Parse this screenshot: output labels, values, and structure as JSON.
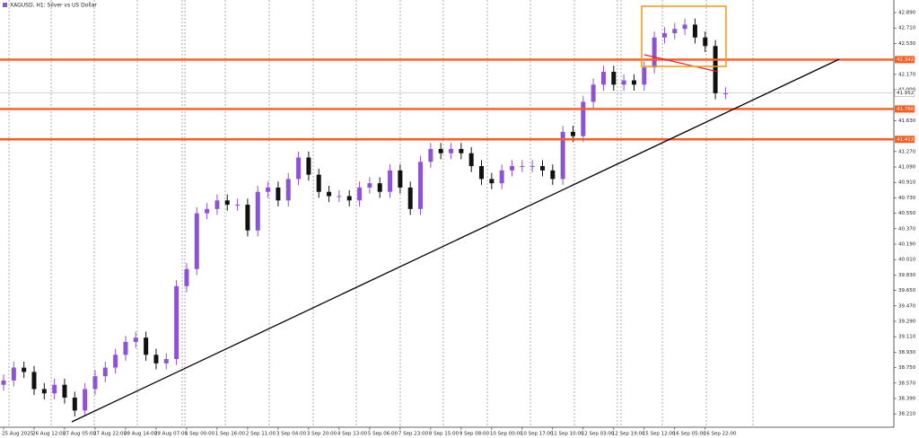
{
  "chart_data": {
    "type": "candlestick",
    "title": "XAGUSD, H1: Silver vs US Dollar",
    "categories": [
      "25 Aug 2025",
      null,
      null,
      "26 Aug 12:00",
      null,
      null,
      "27 Aug 05:00",
      null,
      null,
      "27 Aug 22:00",
      null,
      null,
      "28 Aug 14:00",
      null,
      null,
      "29 Aug 07:00",
      null,
      null,
      "1 Sep 00:00",
      null,
      null,
      "1 Sep 16:00",
      null,
      null,
      "2 Sep 11:00",
      null,
      null,
      "3 Sep 04:00",
      null,
      null,
      "3 Sep 20:00",
      null,
      null,
      "4 Sep 13:00",
      null,
      null,
      "5 Sep 06:00",
      null,
      null,
      "7 Sep 23:00",
      null,
      null,
      "8 Sep 15:00",
      null,
      null,
      "9 Sep 08:00",
      null,
      null,
      "10 Sep 00:00",
      null,
      null,
      "10 Sep 17:00",
      null,
      null,
      "11 Sep 10:00",
      null,
      null,
      "12 Sep 03:00",
      null,
      null,
      "12 Sep 19:00",
      null,
      null,
      "15 Sep 12:00",
      null,
      null,
      "16 Sep 05:00",
      null,
      null,
      "16 Sep 22:00",
      null,
      null
    ],
    "open": [
      38.55,
      38.6,
      38.75,
      38.7,
      38.5,
      38.45,
      38.55,
      38.4,
      38.25,
      38.5,
      38.65,
      38.75,
      38.9,
      39.05,
      39.1,
      38.9,
      38.8,
      38.85,
      39.7,
      39.9,
      40.55,
      40.6,
      40.7,
      40.65,
      40.65,
      40.35,
      40.8,
      40.85,
      40.7,
      40.95,
      41.2,
      41.0,
      40.8,
      40.75,
      40.75,
      40.7,
      40.85,
      40.9,
      40.8,
      41.05,
      40.85,
      40.6,
      41.15,
      41.3,
      41.25,
      41.3,
      41.25,
      41.1,
      40.95,
      40.9,
      41.05,
      41.1,
      41.1,
      41.1,
      41.05,
      40.95,
      41.5,
      41.45,
      41.85,
      42.05,
      42.2,
      42.05,
      42.1,
      42.05,
      42.25,
      42.6,
      42.65,
      42.7,
      42.75,
      42.6,
      42.5,
      41.95
    ],
    "high": [
      38.67,
      38.82,
      38.82,
      38.77,
      38.57,
      38.62,
      38.62,
      38.47,
      38.57,
      38.72,
      38.82,
      38.97,
      39.12,
      39.17,
      39.17,
      38.97,
      38.92,
      39.77,
      39.97,
      40.62,
      40.67,
      40.77,
      40.77,
      40.72,
      40.72,
      40.87,
      40.92,
      40.92,
      41.02,
      41.27,
      41.27,
      41.07,
      40.87,
      40.82,
      40.82,
      40.92,
      40.97,
      40.97,
      41.12,
      41.12,
      40.92,
      41.22,
      41.37,
      41.37,
      41.37,
      41.37,
      41.32,
      41.17,
      41.02,
      41.12,
      41.17,
      41.17,
      41.17,
      41.17,
      41.12,
      41.57,
      41.57,
      41.92,
      42.12,
      42.27,
      42.27,
      42.17,
      42.17,
      42.32,
      42.67,
      42.72,
      42.77,
      42.82,
      42.82,
      42.67,
      42.57,
      42.02
    ],
    "low": [
      38.48,
      38.53,
      38.63,
      38.43,
      38.38,
      38.38,
      38.33,
      38.18,
      38.18,
      38.43,
      38.58,
      38.68,
      38.83,
      38.98,
      38.83,
      38.73,
      38.73,
      38.78,
      39.63,
      39.83,
      40.48,
      40.53,
      40.58,
      40.58,
      40.28,
      40.28,
      40.73,
      40.63,
      40.63,
      40.88,
      40.93,
      40.73,
      40.68,
      40.68,
      40.63,
      40.63,
      40.78,
      40.73,
      40.73,
      40.78,
      40.53,
      40.53,
      41.08,
      41.18,
      41.18,
      41.18,
      41.03,
      40.88,
      40.83,
      40.83,
      40.98,
      41.03,
      41.03,
      40.98,
      40.88,
      40.88,
      41.38,
      41.38,
      41.78,
      41.98,
      41.98,
      41.98,
      41.98,
      41.98,
      42.18,
      42.53,
      42.58,
      42.63,
      42.53,
      42.43,
      41.88,
      41.88
    ],
    "close": [
      38.6,
      38.75,
      38.7,
      38.5,
      38.45,
      38.55,
      38.4,
      38.25,
      38.5,
      38.65,
      38.75,
      38.9,
      39.05,
      39.1,
      38.9,
      38.8,
      38.85,
      39.7,
      39.9,
      40.55,
      40.6,
      40.7,
      40.65,
      40.65,
      40.35,
      40.8,
      40.85,
      40.7,
      40.95,
      41.2,
      41.0,
      40.8,
      40.75,
      40.75,
      40.7,
      40.85,
      40.9,
      40.8,
      41.05,
      40.85,
      40.6,
      41.15,
      41.3,
      41.25,
      41.3,
      41.25,
      41.1,
      40.95,
      40.9,
      41.05,
      41.1,
      41.1,
      41.1,
      41.05,
      40.95,
      41.5,
      41.45,
      41.85,
      42.05,
      42.2,
      42.05,
      42.1,
      42.05,
      42.25,
      42.6,
      42.65,
      42.7,
      42.75,
      42.6,
      42.5,
      41.95,
      41.95
    ],
    "up_color": "#8e52d6",
    "down_color": "#111111",
    "ylim": [
      38.055,
      43.037
    ],
    "yticks": [
      {
        "value": 42.89,
        "label": "42.890"
      },
      {
        "value": 42.71,
        "label": "42.710"
      },
      {
        "value": 42.53,
        "label": "42.530"
      },
      {
        "value": 42.17,
        "label": "42.170"
      },
      {
        "value": 41.99,
        "label": "41.990"
      },
      {
        "value": 41.63,
        "label": "41.630"
      },
      {
        "value": 41.27,
        "label": "41.270"
      },
      {
        "value": 41.09,
        "label": "41.090"
      },
      {
        "value": 40.91,
        "label": "40.910"
      },
      {
        "value": 40.73,
        "label": "40.730"
      },
      {
        "value": 40.55,
        "label": "40.550"
      },
      {
        "value": 40.37,
        "label": "40.370"
      },
      {
        "value": 40.19,
        "label": "40.190"
      },
      {
        "value": 40.01,
        "label": "40.010"
      },
      {
        "value": 39.83,
        "label": "39.830"
      },
      {
        "value": 39.65,
        "label": "39.650"
      },
      {
        "value": 39.47,
        "label": "39.470"
      },
      {
        "value": 39.29,
        "label": "39.290"
      },
      {
        "value": 39.11,
        "label": "39.110"
      },
      {
        "value": 38.93,
        "label": "38.930"
      },
      {
        "value": 38.75,
        "label": "38.750"
      },
      {
        "value": 38.57,
        "label": "38.570"
      },
      {
        "value": 38.39,
        "label": "38.390"
      },
      {
        "value": 38.21,
        "label": "38.210"
      }
    ],
    "levels": [
      42.342,
      41.766,
      41.412
    ],
    "level_color": "#ff5a1f",
    "current_price": 41.952
  }
}
